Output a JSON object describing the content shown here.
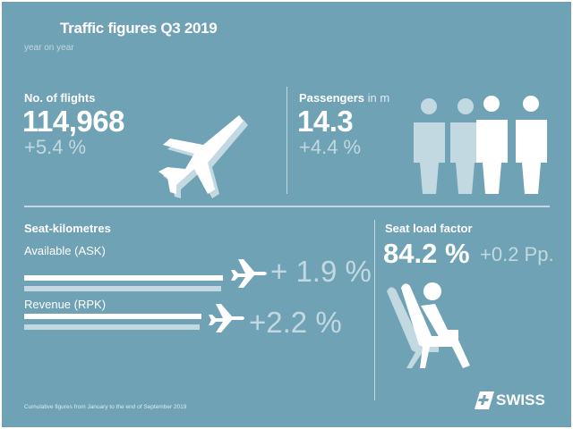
{
  "header": {
    "title": "Traffic figures Q3 2019",
    "subtitle": "year on year"
  },
  "flights": {
    "label": "No. of flights",
    "value": "114,968",
    "change": "+5.4 %",
    "icon": "airplane-icon"
  },
  "passengers": {
    "label": "Passengers",
    "unit": "in m",
    "value": "14.3",
    "change": "+4.4 %",
    "icon": "people-icon"
  },
  "seat_km": {
    "label": "Seat-kilometres",
    "rows": [
      {
        "label": "Available (ASK)",
        "change": "+ 1.9 %"
      },
      {
        "label": "Revenue (RPK)",
        "change": "+2.2 %"
      }
    ]
  },
  "load_factor": {
    "label": "Seat load factor",
    "value": "84.2 %",
    "change": "+0.2 Pp.",
    "icon": "seated-passenger-icon"
  },
  "footer": {
    "note": "Cumulative figures from January to the end of September 2019",
    "logo": "SWISS"
  },
  "colors": {
    "background": "#6ea2b4",
    "light": "#c2d9e1",
    "white": "#ffffff"
  }
}
